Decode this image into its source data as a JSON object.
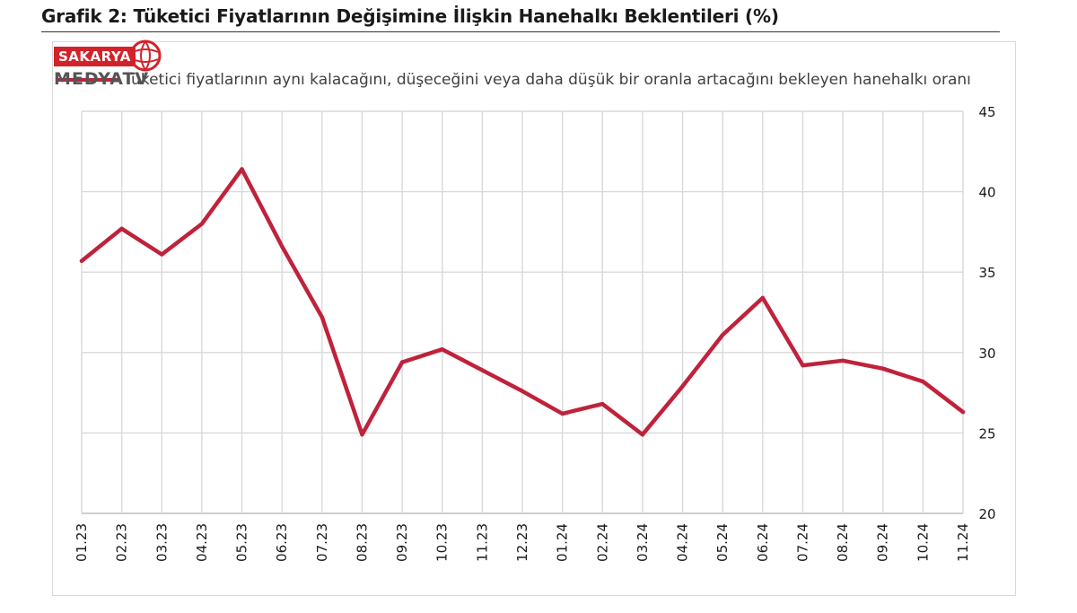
{
  "title": "Grafik 2: Tüketici Fiyatlarının Değişimine İlişkin Hanehalkı Beklentileri (%)",
  "logo": {
    "top": "SAKARYA",
    "bottom": "MEDYATV"
  },
  "colors": {
    "series": "#C0223B",
    "grid": "#d9d9d9",
    "logo_red": "#d2232a"
  },
  "chart_data": {
    "type": "line",
    "title": "Grafik 2: Tüketici Fiyatlarının Değişimine İlişkin Hanehalkı Beklentileri (%)",
    "xlabel": "",
    "ylabel": "",
    "ylim": [
      20,
      45
    ],
    "yticks": [
      20,
      25,
      30,
      35,
      40,
      45
    ],
    "y_axis_side": "right",
    "grid": true,
    "legend": "top-left",
    "categories": [
      "01.23",
      "02.23",
      "03.23",
      "04.23",
      "05.23",
      "06.23",
      "07.23",
      "08.23",
      "09.23",
      "10.23",
      "11.23",
      "12.23",
      "01.24",
      "02.24",
      "03.24",
      "04.24",
      "05.24",
      "06.24",
      "07.24",
      "08.24",
      "09.24",
      "10.24",
      "11.24"
    ],
    "series": [
      {
        "name": "Tüketici fiyatlarının aynı kalacağını, düşeceğini veya daha düşük bir oranla artacağını bekleyen hanehalkı oranı",
        "color": "#C0223B",
        "values": [
          35.7,
          37.7,
          36.1,
          38.0,
          41.4,
          36.6,
          32.2,
          24.9,
          29.4,
          30.2,
          28.9,
          27.6,
          26.2,
          26.8,
          24.9,
          27.9,
          31.1,
          33.4,
          29.2,
          29.5,
          29.0,
          28.2,
          26.3
        ]
      }
    ]
  }
}
